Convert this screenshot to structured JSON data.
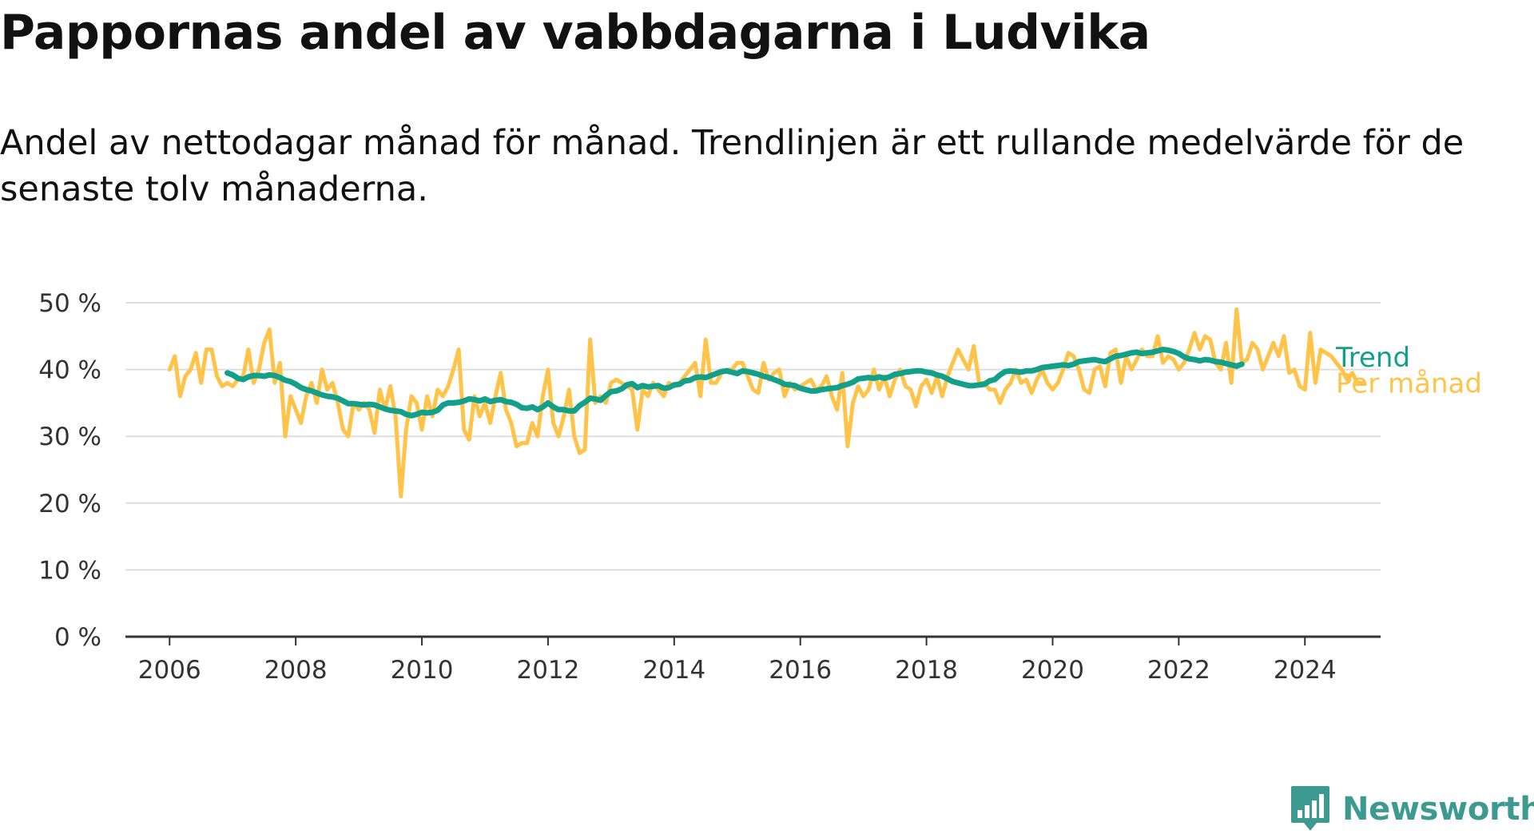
{
  "title": "Pappornas andel av vabbdagarna i Ludvika",
  "subtitle": "Andel av nettodagar månad för månad. Trendlinjen är ett rullande medelvärde för de senaste tolv månaderna.",
  "brand": {
    "name": "Newsworthy",
    "color": "#3d9a91"
  },
  "chart_data": {
    "type": "line",
    "title": "Pappornas andel av vabbdagarna i Ludvika",
    "subtitle": "Andel av nettodagar månad för månad. Trendlinjen är ett rullande medelvärde för de senaste tolv månaderna.",
    "xlabel": "",
    "ylabel": "",
    "xlim": [
      2005.3,
      2025.2
    ],
    "ylim": [
      0,
      50
    ],
    "x_ticks": [
      "2006",
      "2008",
      "2010",
      "2012",
      "2014",
      "2016",
      "2018",
      "2020",
      "2022",
      "2024"
    ],
    "y_ticks": [
      "0 %",
      "10 %",
      "20 %",
      "30 %",
      "40 %",
      "50 %"
    ],
    "grid": true,
    "legend": "direct labels at right end of lines",
    "series": [
      {
        "name": "Per månad",
        "color": "#ffc34a",
        "x_start": "2006-01",
        "step": "month",
        "values": [
          40,
          42,
          36,
          39,
          40,
          42.5,
          38,
          43,
          43,
          39,
          37.5,
          38,
          37.5,
          38.5,
          39,
          43,
          38,
          40,
          44,
          46,
          38,
          41,
          30,
          36,
          34,
          32,
          36,
          38,
          35,
          40,
          37,
          38,
          35,
          31,
          30,
          35,
          34,
          35,
          34,
          30.5,
          37,
          34,
          37.5,
          33,
          21,
          31,
          36,
          35,
          31,
          36,
          33,
          37,
          36,
          37.5,
          40,
          43,
          31,
          29.5,
          36,
          33,
          35,
          32,
          36,
          39.5,
          34,
          32,
          28.5,
          29,
          29,
          32,
          30,
          36,
          40,
          32,
          30,
          33,
          37,
          30,
          27.5,
          28,
          44.5,
          35,
          36,
          35,
          38,
          38.5,
          38,
          37.5,
          37,
          31,
          37,
          36,
          38,
          37,
          36,
          38,
          37.5,
          38,
          39,
          40,
          41,
          36,
          44.5,
          38,
          38,
          39.5,
          40,
          40,
          41,
          41,
          39,
          37,
          36.5,
          41,
          38.5,
          39.5,
          40,
          36,
          38,
          37,
          37.5,
          38,
          38.5,
          37,
          37.5,
          39,
          36,
          34,
          39.5,
          28.5,
          35,
          37.5,
          36,
          37,
          40,
          37,
          39,
          36,
          38.5,
          40,
          37.5,
          37,
          34.5,
          37.5,
          38.5,
          36.5,
          39,
          36,
          39,
          41,
          43,
          41.5,
          40,
          43.5,
          38,
          38,
          37,
          37,
          35,
          37,
          38,
          40,
          38,
          38.5,
          36.5,
          38.5,
          40,
          38,
          37,
          38,
          40,
          42.5,
          42,
          40,
          37,
          36.5,
          40,
          40.5,
          37.5,
          42.5,
          43,
          38,
          42,
          40,
          41.5,
          43,
          42,
          42,
          45,
          41,
          42,
          41.5,
          40,
          41,
          43,
          45.5,
          43,
          45,
          44.5,
          41,
          40,
          44,
          38,
          49,
          41,
          41.5,
          44,
          43,
          40,
          42,
          44,
          42,
          45,
          39.5,
          40,
          37.5,
          37,
          45.5,
          38,
          43,
          42.5,
          42,
          41,
          40,
          38.5,
          39.5,
          38,
          38
        ]
      },
      {
        "name": "Trend",
        "color": "#12a08a",
        "x_start": "2006-12",
        "step": "month",
        "values": [
          39.5,
          39.2,
          38.7,
          38.5,
          38.9,
          39.1,
          39.1,
          39.0,
          39.2,
          39.1,
          38.8,
          38.4,
          38.2,
          37.8,
          37.3,
          37.0,
          36.8,
          36.5,
          36.2,
          36.0,
          35.9,
          35.7,
          35.3,
          34.9,
          34.9,
          34.8,
          34.7,
          34.8,
          34.7,
          34.4,
          34.1,
          33.9,
          33.8,
          33.7,
          33.3,
          33.1,
          33.3,
          33.6,
          33.5,
          33.6,
          33.9,
          34.7,
          35.0,
          35.0,
          35.1,
          35.3,
          35.6,
          35.5,
          35.3,
          35.6,
          35.2,
          35.4,
          35.5,
          35.2,
          35.1,
          34.8,
          34.3,
          34.2,
          34.4,
          34.0,
          34.4,
          35.0,
          34.4,
          34.0,
          34.0,
          33.8,
          33.8,
          34.6,
          35.1,
          35.7,
          35.6,
          35.4,
          36.1,
          36.7,
          36.8,
          37.1,
          37.7,
          37.9,
          37.3,
          37.6,
          37.4,
          37.5,
          37.6,
          37.2,
          37.3,
          37.7,
          37.8,
          38.3,
          38.4,
          38.8,
          38.9,
          38.8,
          39.1,
          39.4,
          39.7,
          39.8,
          39.6,
          39.4,
          39.8,
          39.7,
          39.5,
          39.3,
          39.0,
          38.8,
          38.5,
          38.2,
          37.8,
          37.7,
          37.6,
          37.2,
          37.0,
          36.8,
          36.8,
          37.0,
          37.1,
          37.2,
          37.3,
          37.6,
          37.8,
          38.1,
          38.6,
          38.7,
          38.8,
          38.7,
          38.9,
          38.7,
          38.9,
          39.3,
          39.4,
          39.6,
          39.7,
          39.8,
          39.8,
          39.6,
          39.5,
          39.2,
          39.0,
          38.6,
          38.2,
          38.0,
          37.8,
          37.6,
          37.6,
          37.7,
          37.8,
          38.3,
          38.5,
          39.2,
          39.7,
          39.8,
          39.7,
          39.6,
          39.8,
          39.8,
          40.0,
          40.3,
          40.4,
          40.5,
          40.6,
          40.7,
          40.6,
          40.8,
          41.2,
          41.3,
          41.4,
          41.5,
          41.3,
          41.2,
          41.6,
          42.0,
          42.1,
          42.3,
          42.5,
          42.6,
          42.4,
          42.5,
          42.6,
          42.8,
          43.0,
          42.9,
          42.7,
          42.4,
          41.9,
          41.6,
          41.5,
          41.3,
          41.5,
          41.4,
          41.2,
          41.1,
          40.9,
          40.7,
          40.5,
          40.8
        ]
      }
    ]
  }
}
